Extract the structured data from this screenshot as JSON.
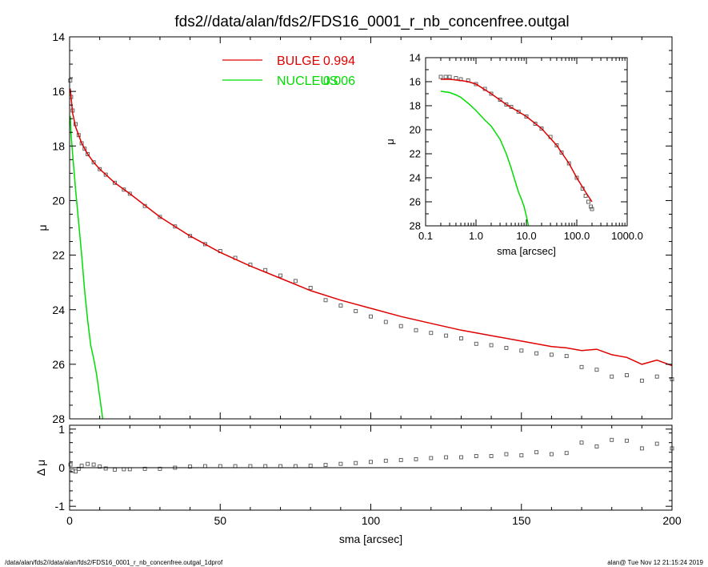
{
  "figure": {
    "title": "fds2//data/alan/fds2/FDS16_0001_r_nb_concenfree.outgal",
    "footer_left": "/data/alan/fds2//data/alan/fds2/FDS16_0001_r_nb_concenfree.outgal_1dprof",
    "footer_right": "alan@  Tue Nov 12 21:15:24 2019"
  },
  "colors": {
    "bulge": "#e00000",
    "nucleus": "#00dd00",
    "data": "#555555",
    "axis": "#000000"
  },
  "chart_data": [
    {
      "id": "main",
      "type": "scatter",
      "title": "fds2//data/alan/fds2/FDS16_0001_r_nb_concenfree.outgal",
      "xlabel": "",
      "ylabel": "μ",
      "xlim": [
        0,
        200
      ],
      "ylim": [
        28,
        14
      ],
      "y_inverted": true,
      "xticks": [
        0,
        50,
        100,
        150,
        200
      ],
      "yticks": [
        14,
        16,
        18,
        20,
        22,
        24,
        26,
        28
      ],
      "grid": false,
      "legend": [
        {
          "name": "BULGE",
          "value": "0.994",
          "color": "#e00000"
        },
        {
          "name": "NUCLEUS",
          "value": "0.006",
          "color": "#00dd00"
        }
      ],
      "legend_position": "top-center",
      "series": [
        {
          "name": "data",
          "style": "open-squares",
          "color": "#555555",
          "x": [
            0.2,
            0.5,
            1,
            2,
            3,
            4,
            5,
            6,
            8,
            10,
            12,
            15,
            18,
            20,
            25,
            30,
            35,
            40,
            45,
            50,
            55,
            60,
            65,
            70,
            75,
            80,
            85,
            90,
            95,
            100,
            105,
            110,
            115,
            120,
            125,
            130,
            135,
            140,
            145,
            150,
            155,
            160,
            165,
            170,
            175,
            180,
            185,
            190,
            195,
            200
          ],
          "y": [
            15.6,
            16.2,
            16.7,
            17.2,
            17.6,
            17.9,
            18.1,
            18.3,
            18.6,
            18.85,
            19.05,
            19.35,
            19.6,
            19.75,
            20.2,
            20.6,
            20.95,
            21.3,
            21.6,
            21.85,
            22.1,
            22.35,
            22.55,
            22.75,
            22.95,
            23.2,
            23.65,
            23.85,
            24.05,
            24.25,
            24.45,
            24.6,
            24.75,
            24.85,
            24.95,
            25.05,
            25.25,
            25.3,
            25.4,
            25.5,
            25.6,
            25.65,
            25.7,
            26.1,
            26.2,
            26.45,
            26.4,
            26.6,
            26.45,
            26.55
          ]
        },
        {
          "name": "BULGE",
          "style": "line",
          "color": "#e00000",
          "x": [
            0.2,
            1,
            2,
            4,
            6,
            8,
            10,
            15,
            20,
            30,
            40,
            50,
            60,
            70,
            80,
            90,
            100,
            110,
            120,
            130,
            140,
            150,
            160,
            165,
            170,
            175,
            180,
            185,
            190,
            195,
            200
          ],
          "y": [
            15.9,
            16.8,
            17.3,
            17.9,
            18.3,
            18.6,
            18.85,
            19.35,
            19.75,
            20.6,
            21.3,
            21.9,
            22.4,
            22.85,
            23.3,
            23.65,
            23.95,
            24.25,
            24.5,
            24.75,
            24.95,
            25.15,
            25.35,
            25.4,
            25.5,
            25.45,
            25.65,
            25.75,
            26.0,
            25.85,
            26.05
          ]
        },
        {
          "name": "NUCLEUS",
          "style": "line",
          "color": "#00dd00",
          "x": [
            0.2,
            0.5,
            1,
            2,
            3,
            4,
            5,
            6,
            7,
            8,
            9,
            10,
            11
          ],
          "y": [
            16.9,
            17.6,
            18.3,
            19.6,
            20.8,
            22.0,
            23.3,
            24.4,
            25.3,
            25.8,
            26.4,
            27.2,
            28.0
          ]
        }
      ]
    },
    {
      "id": "residual",
      "type": "scatter",
      "xlabel": "sma [arcsec]",
      "ylabel": "Δ μ",
      "xlim": [
        0,
        200
      ],
      "ylim": [
        -1.1,
        1.1
      ],
      "xticks": [
        0,
        50,
        100,
        150,
        200
      ],
      "yticks": [
        -1,
        0,
        1
      ],
      "grid": false,
      "series": [
        {
          "name": "residual",
          "style": "open-squares",
          "color": "#555555",
          "x": [
            0.3,
            1,
            2,
            3,
            4,
            6,
            8,
            10,
            12,
            15,
            18,
            20,
            25,
            30,
            35,
            40,
            45,
            50,
            55,
            60,
            65,
            70,
            75,
            80,
            85,
            90,
            95,
            100,
            105,
            110,
            115,
            120,
            125,
            130,
            135,
            140,
            145,
            150,
            155,
            160,
            165,
            170,
            175,
            180,
            185,
            190,
            195,
            200
          ],
          "y": [
            0.08,
            -0.08,
            -0.1,
            -0.03,
            0.05,
            0.1,
            0.08,
            0.03,
            -0.02,
            -0.05,
            -0.04,
            -0.04,
            -0.03,
            -0.03,
            0.0,
            0.03,
            0.04,
            0.04,
            0.04,
            0.04,
            0.04,
            0.04,
            0.04,
            0.05,
            0.07,
            0.1,
            0.12,
            0.15,
            0.18,
            0.2,
            0.22,
            0.25,
            0.27,
            0.27,
            0.3,
            0.3,
            0.35,
            0.32,
            0.4,
            0.35,
            0.38,
            0.65,
            0.55,
            0.72,
            0.7,
            0.5,
            0.62,
            0.5
          ]
        },
        {
          "name": "zero",
          "style": "line",
          "color": "#000000",
          "x": [
            0,
            200
          ],
          "y": [
            0,
            0
          ]
        }
      ]
    },
    {
      "id": "inset",
      "type": "scatter",
      "xlabel": "sma [arcsec]",
      "ylabel": "μ",
      "xscale": "log",
      "xlim": [
        0.1,
        1000
      ],
      "ylim": [
        28,
        14
      ],
      "y_inverted": true,
      "xticks": [
        0.1,
        1,
        10,
        100,
        1000
      ],
      "xticklabels": [
        "0.1",
        "1.0",
        "10.0",
        "100.0",
        "1000.0"
      ],
      "yticks": [
        14,
        16,
        18,
        20,
        22,
        24,
        26,
        28
      ],
      "grid": false,
      "series": [
        {
          "name": "data",
          "style": "open-squares",
          "color": "#555555",
          "x": [
            0.2,
            0.25,
            0.3,
            0.4,
            0.5,
            0.7,
            1,
            1.5,
            2,
            3,
            4,
            5,
            7,
            10,
            15,
            20,
            30,
            40,
            50,
            70,
            100,
            130,
            150,
            170,
            190,
            200
          ],
          "y": [
            15.6,
            15.6,
            15.6,
            15.7,
            15.8,
            15.9,
            16.2,
            16.6,
            17.0,
            17.5,
            17.9,
            18.1,
            18.5,
            18.9,
            19.5,
            19.9,
            20.6,
            21.3,
            21.9,
            22.8,
            24.0,
            24.9,
            25.5,
            26.0,
            26.4,
            26.6
          ]
        },
        {
          "name": "BULGE",
          "style": "line",
          "color": "#e00000",
          "x": [
            0.2,
            0.3,
            0.5,
            0.7,
            1,
            2,
            4,
            7,
            10,
            20,
            40,
            70,
            100,
            150,
            200
          ],
          "y": [
            15.8,
            15.8,
            15.9,
            16.0,
            16.2,
            17.0,
            17.9,
            18.5,
            18.9,
            19.9,
            21.3,
            22.8,
            24.0,
            25.2,
            26.0
          ]
        },
        {
          "name": "NUCLEUS",
          "style": "line",
          "color": "#00dd00",
          "x": [
            0.2,
            0.3,
            0.4,
            0.5,
            0.7,
            1,
            1.5,
            2,
            3,
            4,
            5,
            6,
            7,
            8,
            9,
            10,
            11
          ],
          "y": [
            16.8,
            16.9,
            17.1,
            17.3,
            17.8,
            18.4,
            19.2,
            19.7,
            20.8,
            22.0,
            23.2,
            24.3,
            25.2,
            25.8,
            26.4,
            27.2,
            28.0
          ]
        }
      ]
    }
  ]
}
